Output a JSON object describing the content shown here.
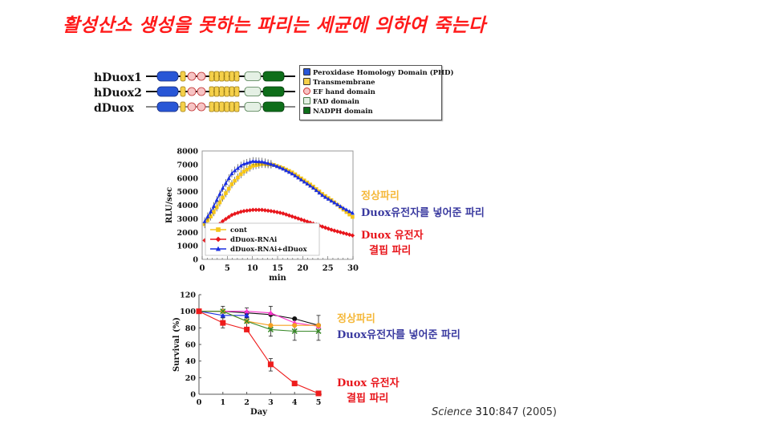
{
  "title": "활성산소 생성을 못하는 파리는 세균에 의하여 죽는다",
  "domain_diagram": {
    "proteins": [
      {
        "label": "hDuox1",
        "line_color": "#111111"
      },
      {
        "label": "hDuox2",
        "line_color": "#111111"
      },
      {
        "label": "dDuox",
        "line_color": "#888888"
      }
    ],
    "legend": [
      {
        "label": "Peroxidase Homology Domain (PHD)",
        "color": "#2856d6",
        "shape": "square"
      },
      {
        "label": "Transmembrane",
        "color": "#f5d04a",
        "shape": "square"
      },
      {
        "label": "EF hand domain",
        "color": "#f7c4c4",
        "shape": "circle"
      },
      {
        "label": "FAD domain",
        "color": "#e4f0e4",
        "shape": "square"
      },
      {
        "label": "NADPH domain",
        "color": "#0e6e1a",
        "shape": "square"
      }
    ]
  },
  "annotations_top": {
    "normal": "정상파리",
    "rescue_en": "Duox",
    "rescue_ko": "유전자를 넣어준 파리",
    "mutant_en": "Duox",
    "mutant_ko1": "유전자",
    "mutant_ko2": "결핍 파리"
  },
  "annotations_bottom": {
    "normal": "정상파리",
    "rescue_en": "Duox",
    "rescue_ko": "유전자를 넣어준 파리",
    "mutant_en": "Duox",
    "mutant_ko1": "유전자",
    "mutant_ko2": "결핍 파리"
  },
  "citation": {
    "journal": "Science",
    "volume": "310",
    "page": ":847 (2005)"
  },
  "colors": {
    "title": "#ff1a1a",
    "normal": "#f5b83a",
    "rescue": "#3b3ba0",
    "mutant": "#e8161c"
  },
  "chart_data": [
    {
      "type": "line",
      "title": "",
      "xlabel": "min",
      "ylabel": "RLU/sec",
      "xlim": [
        0,
        30
      ],
      "ylim": [
        0,
        8000
      ],
      "xticks": [
        "0",
        "5",
        "10",
        "15",
        "20",
        "25",
        "30"
      ],
      "yticks": [
        "0",
        "1000",
        "2000",
        "3000",
        "4000",
        "5000",
        "6000",
        "7000",
        "8000"
      ],
      "legend_position": "lower-left inside",
      "x": [
        0.5,
        2,
        4,
        6,
        8,
        10,
        12,
        14,
        16,
        18,
        20,
        22,
        24,
        26,
        28,
        30
      ],
      "series": [
        {
          "name": "cont",
          "color": "#f5c518",
          "marker": "square",
          "values": [
            2600,
            3300,
            4500,
            5600,
            6400,
            6900,
            7050,
            7000,
            6750,
            6400,
            5900,
            5400,
            4800,
            4300,
            3700,
            3100
          ]
        },
        {
          "name": "dDuox-RNAi",
          "color": "#e8161c",
          "marker": "diamond",
          "values": [
            1400,
            2100,
            2800,
            3300,
            3550,
            3650,
            3650,
            3550,
            3400,
            3150,
            2900,
            2650,
            2400,
            2150,
            1950,
            1750
          ]
        },
        {
          "name": "dDuox-RNAi+dDuox",
          "color": "#1a2ee0",
          "marker": "triangle",
          "values": [
            2800,
            3700,
            5200,
            6400,
            7000,
            7250,
            7200,
            7000,
            6700,
            6300,
            5800,
            5300,
            4700,
            4250,
            3800,
            3400
          ]
        }
      ]
    },
    {
      "type": "line",
      "title": "",
      "xlabel": "Day",
      "ylabel": "Survival (%)",
      "xlim": [
        0,
        5
      ],
      "ylim": [
        0,
        120
      ],
      "xticks": [
        "0",
        "1",
        "2",
        "3",
        "4",
        "5"
      ],
      "yticks": [
        "0",
        "20",
        "40",
        "60",
        "80",
        "100",
        "120"
      ],
      "x": [
        0,
        1,
        2,
        3,
        4,
        5
      ],
      "series": [
        {
          "name": "black",
          "color": "#111111",
          "marker": "circle",
          "values": [
            100,
            100,
            98,
            96,
            91,
            83
          ]
        },
        {
          "name": "magenta",
          "color": "#ff33cc",
          "marker": "triangle",
          "values": [
            100,
            100,
            100,
            98,
            86,
            82
          ]
        },
        {
          "name": "blue",
          "color": "#1a2ee0",
          "marker": "triangle",
          "values": [
            100,
            95,
            95,
            null,
            null,
            null
          ]
        },
        {
          "name": "orange",
          "color": "#f5a020",
          "marker": "circle",
          "values": [
            100,
            100,
            88,
            83,
            83,
            83
          ]
        },
        {
          "name": "green",
          "color": "#3a8a2a",
          "marker": "x",
          "values": [
            100,
            100,
            88,
            78,
            76,
            76
          ]
        },
        {
          "name": "red",
          "color": "#ee1c1c",
          "marker": "square",
          "values": [
            100,
            86,
            78,
            36,
            13,
            1
          ]
        }
      ]
    }
  ]
}
